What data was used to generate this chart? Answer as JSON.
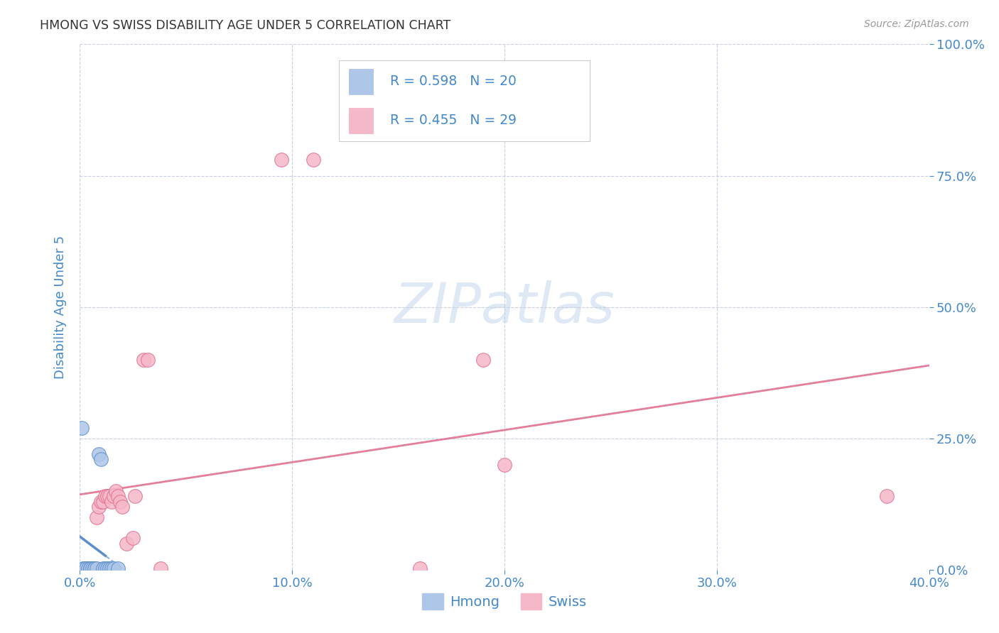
{
  "title": "HMONG VS SWISS DISABILITY AGE UNDER 5 CORRELATION CHART",
  "source": "Source: ZipAtlas.com",
  "ylabel": "Disability Age Under 5",
  "watermark": "ZIPatlas",
  "xlim": [
    0.0,
    0.4
  ],
  "ylim": [
    0.0,
    1.0
  ],
  "xticks": [
    0.0,
    0.1,
    0.2,
    0.3,
    0.4
  ],
  "yticks": [
    0.0,
    0.25,
    0.5,
    0.75,
    1.0
  ],
  "xtick_labels": [
    "0.0%",
    "10.0%",
    "20.0%",
    "30.0%",
    "40.0%"
  ],
  "ytick_labels": [
    "0.0%",
    "25.0%",
    "50.0%",
    "75.0%",
    "100.0%"
  ],
  "hmong_color": "#aec6e8",
  "swiss_color": "#f5b8c8",
  "hmong_edge": "#5b8fcc",
  "swiss_edge": "#e07090",
  "trendline_hmong_color": "#5b8fcc",
  "trendline_swiss_color": "#e07090",
  "legend_text_color": "#4488cc",
  "R_hmong": 0.598,
  "N_hmong": 20,
  "R_swiss": 0.455,
  "N_swiss": 29,
  "hmong_x": [
    0.001,
    0.002,
    0.002,
    0.003,
    0.003,
    0.004,
    0.005,
    0.006,
    0.006,
    0.007,
    0.007,
    0.008,
    0.009,
    0.009,
    0.01,
    0.01,
    0.011,
    0.012,
    0.013,
    0.015
  ],
  "hmong_y": [
    0.005,
    0.005,
    0.005,
    0.005,
    0.005,
    0.005,
    0.005,
    0.005,
    0.005,
    0.005,
    0.005,
    0.005,
    0.005,
    0.005,
    0.005,
    0.005,
    0.005,
    0.005,
    0.005,
    0.005
  ],
  "hmong_x_real": [
    0.001,
    0.001,
    0.002,
    0.003,
    0.004,
    0.005,
    0.006,
    0.007,
    0.008,
    0.009,
    0.009,
    0.01,
    0.011,
    0.012,
    0.013,
    0.015,
    0.017,
    0.018,
    0.02,
    0.022
  ],
  "hmong_y_real": [
    0.005,
    0.27,
    0.005,
    0.005,
    0.005,
    0.005,
    0.005,
    0.005,
    0.005,
    0.005,
    0.22,
    0.005,
    0.005,
    0.005,
    0.28,
    0.27,
    0.005,
    0.005,
    0.28,
    0.005
  ],
  "swiss_x": [
    0.002,
    0.004,
    0.005,
    0.006,
    0.007,
    0.008,
    0.009,
    0.01,
    0.011,
    0.012,
    0.013,
    0.014,
    0.015,
    0.016,
    0.017,
    0.018,
    0.019,
    0.02,
    0.022,
    0.025,
    0.025,
    0.028,
    0.03,
    0.032,
    0.038,
    0.095,
    0.11,
    0.18,
    0.38
  ],
  "swiss_y": [
    0.005,
    0.005,
    0.005,
    0.005,
    0.005,
    0.005,
    0.05,
    0.08,
    0.1,
    0.13,
    0.13,
    0.14,
    0.15,
    0.15,
    0.14,
    0.14,
    0.13,
    0.12,
    0.12,
    0.05,
    0.08,
    0.15,
    0.4,
    0.4,
    0.005,
    0.8,
    0.78,
    0.4,
    0.14
  ],
  "background_color": "#ffffff",
  "grid_color": "#c8d0e0",
  "title_color": "#333333",
  "tick_color": "#4488cc"
}
